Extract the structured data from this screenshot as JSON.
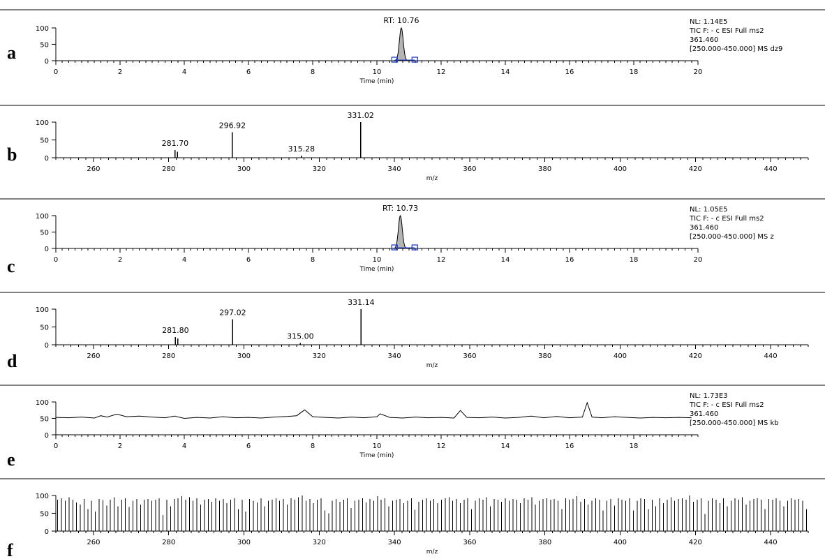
{
  "colors": {
    "axis": "#000000",
    "peak_fill": "#b4b4b4",
    "marker": "#1f3fd0",
    "line": "#000000"
  },
  "chart_data": [
    {
      "panel": "a",
      "type": "area",
      "xlabel": "Time (min)",
      "xlim": [
        0,
        20
      ],
      "ylim": [
        0,
        100
      ],
      "xticks": [
        0,
        2,
        4,
        6,
        8,
        10,
        12,
        14,
        16,
        18,
        20
      ],
      "yticks": [
        0,
        50,
        100
      ],
      "peak": {
        "rt": 10.76,
        "height": 100,
        "width": 0.12,
        "start": 10.55,
        "end": 11.18
      },
      "annotations": [
        "RT: 10.76"
      ],
      "info": [
        "NL: 1.14E5",
        "TIC F: - c ESI Full ms2",
        "361.460",
        "[250.000-450.000]  MS dz9"
      ]
    },
    {
      "panel": "b",
      "type": "bar",
      "xlabel": "m/z",
      "xlim": [
        250,
        450
      ],
      "ylim": [
        0,
        100
      ],
      "xticks": [
        260,
        280,
        300,
        320,
        340,
        360,
        380,
        400,
        420,
        440
      ],
      "yticks": [
        0,
        50,
        100
      ],
      "x": [
        281.7,
        282.3,
        296.92,
        315.28,
        331.02
      ],
      "y": [
        22,
        17,
        72,
        6,
        100
      ],
      "annotations": [
        {
          "x": 281.7,
          "label": "281.70"
        },
        {
          "x": 296.92,
          "label": "296.92"
        },
        {
          "x": 315.28,
          "label": "315.28"
        },
        {
          "x": 331.02,
          "label": "331.02"
        }
      ]
    },
    {
      "panel": "c",
      "type": "area",
      "xlabel": "Time (min)",
      "xlim": [
        0,
        20
      ],
      "ylim": [
        0,
        100
      ],
      "xticks": [
        0,
        2,
        4,
        6,
        8,
        10,
        12,
        14,
        16,
        18,
        20
      ],
      "yticks": [
        0,
        50,
        100
      ],
      "peak": {
        "rt": 10.73,
        "height": 100,
        "width": 0.12,
        "start": 10.55,
        "end": 11.18
      },
      "annotations": [
        "RT: 10.73"
      ],
      "info": [
        "NL: 1.05E5",
        "TIC F: - c ESI Full ms2",
        "361.460",
        "[250.000-450.000]  MS z"
      ]
    },
    {
      "panel": "d",
      "type": "bar",
      "xlabel": "m/z",
      "xlim": [
        250,
        450
      ],
      "ylim": [
        0,
        100
      ],
      "xticks": [
        260,
        280,
        300,
        320,
        340,
        360,
        380,
        400,
        420,
        440
      ],
      "yticks": [
        0,
        50,
        100
      ],
      "x": [
        281.8,
        282.4,
        297.02,
        315.0,
        331.14
      ],
      "y": [
        22,
        18,
        72,
        5,
        100
      ],
      "annotations": [
        {
          "x": 281.8,
          "label": "281.80"
        },
        {
          "x": 297.02,
          "label": "297.02"
        },
        {
          "x": 315.0,
          "label": "315.00"
        },
        {
          "x": 331.14,
          "label": "331.14"
        }
      ]
    },
    {
      "panel": "e",
      "type": "line",
      "xlabel": "Time (min)",
      "xlim": [
        0,
        20
      ],
      "ylim": [
        0,
        100
      ],
      "xticks": [
        0,
        2,
        4,
        6,
        8,
        10,
        12,
        14,
        16,
        18
      ],
      "yticks": [
        0,
        50,
        100
      ],
      "x": [
        0,
        0.4,
        0.8,
        1.2,
        1.4,
        1.6,
        1.9,
        2.2,
        2.6,
        3.0,
        3.4,
        3.7,
        4.0,
        4.4,
        4.8,
        5.2,
        5.6,
        6.0,
        6.4,
        6.8,
        7.2,
        7.5,
        7.75,
        8.0,
        8.4,
        8.8,
        9.2,
        9.6,
        10.0,
        10.1,
        10.4,
        10.8,
        11.2,
        11.6,
        12.0,
        12.4,
        12.6,
        12.8,
        13.2,
        13.6,
        14.0,
        14.4,
        14.8,
        15.2,
        15.6,
        16.0,
        16.4,
        16.55,
        16.7,
        17.0,
        17.4,
        17.8,
        18.2,
        18.6,
        19.0,
        19.4,
        19.8
      ],
      "y": [
        53,
        52,
        54,
        51,
        58,
        54,
        63,
        55,
        57,
        54,
        52,
        57,
        50,
        53,
        51,
        55,
        52,
        53,
        51,
        54,
        56,
        58,
        76,
        55,
        53,
        51,
        54,
        52,
        55,
        64,
        53,
        51,
        54,
        52,
        53,
        51,
        74,
        53,
        52,
        54,
        51,
        53,
        57,
        52,
        56,
        52,
        54,
        98,
        54,
        52,
        55,
        53,
        51,
        53,
        52,
        53,
        52
      ],
      "info": [
        "NL: 1.73E3",
        "TIC F: - c ESI Full ms2",
        "361.460",
        "[250.000-450.000]  MS kb"
      ]
    },
    {
      "panel": "f",
      "type": "bar",
      "xlabel": "m/z",
      "xlim": [
        250,
        450
      ],
      "ylim": [
        0,
        100
      ],
      "xticks": [
        260,
        280,
        300,
        320,
        340,
        360,
        380,
        400,
        420,
        440
      ],
      "yticks": [
        0,
        50,
        100
      ],
      "x": [
        250.5,
        251.5,
        252.5,
        253.5,
        254.5,
        255.5,
        256.5,
        257.5,
        258.5,
        259.5,
        260.5,
        261.5,
        262.5,
        263.5,
        264.5,
        265.5,
        266.5,
        267.5,
        268.5,
        269.5,
        270.5,
        271.5,
        272.5,
        273.5,
        274.5,
        275.5,
        276.5,
        277.5,
        278.5,
        279.5,
        280.5,
        281.5,
        282.5,
        283.5,
        284.5,
        285.5,
        286.5,
        287.5,
        288.5,
        289.5,
        290.5,
        291.5,
        292.5,
        293.5,
        294.5,
        295.5,
        296.5,
        297.5,
        298.5,
        299.5,
        300.5,
        301.5,
        302.5,
        303.5,
        304.5,
        305.5,
        306.5,
        307.5,
        308.5,
        309.5,
        310.5,
        311.5,
        312.5,
        313.5,
        314.5,
        315.5,
        316.5,
        317.5,
        318.5,
        319.5,
        320.5,
        321.5,
        322.5,
        323.5,
        324.5,
        325.5,
        326.5,
        327.5,
        328.5,
        329.5,
        330.5,
        331.5,
        332.5,
        333.5,
        334.5,
        335.5,
        336.5,
        337.5,
        338.5,
        339.5,
        340.5,
        341.5,
        342.5,
        343.5,
        344.5,
        345.5,
        346.5,
        347.5,
        348.5,
        349.5,
        350.5,
        351.5,
        352.5,
        353.5,
        354.5,
        355.5,
        356.5,
        357.5,
        358.5,
        359.5,
        360.5,
        361.5,
        362.5,
        363.5,
        364.5,
        365.5,
        366.5,
        367.5,
        368.5,
        369.5,
        370.5,
        371.5,
        372.5,
        373.5,
        374.5,
        375.5,
        376.5,
        377.5,
        378.5,
        379.5,
        380.5,
        381.5,
        382.5,
        383.5,
        384.5,
        385.5,
        386.5,
        387.5,
        388.5,
        389.5,
        390.5,
        391.5,
        392.5,
        393.5,
        394.5,
        395.5,
        396.5,
        397.5,
        398.5,
        399.5,
        400.5,
        401.5,
        402.5,
        403.5,
        404.5,
        405.5,
        406.5,
        407.5,
        408.5,
        409.5,
        410.5,
        411.5,
        412.5,
        413.5,
        414.5,
        415.5,
        416.5,
        417.5,
        418.5,
        419.5,
        420.5,
        421.5,
        422.5,
        423.5,
        424.5,
        425.5,
        426.5,
        427.5,
        428.5,
        429.5,
        430.5,
        431.5,
        432.5,
        433.5,
        434.5,
        435.5,
        436.5,
        437.5,
        438.5,
        439.5,
        440.5,
        441.5,
        442.5,
        443.5,
        444.5,
        445.5,
        446.5,
        447.5,
        448.5,
        449.5
      ],
      "y": [
        88,
        92,
        85,
        95,
        88,
        80,
        75,
        90,
        62,
        85,
        55,
        90,
        87,
        72,
        88,
        95,
        70,
        88,
        92,
        68,
        85,
        90,
        75,
        88,
        90,
        85,
        88,
        92,
        45,
        88,
        70,
        90,
        92,
        98,
        88,
        95,
        85,
        92,
        75,
        88,
        90,
        82,
        92,
        85,
        90,
        78,
        88,
        92,
        62,
        88,
        55,
        90,
        85,
        80,
        92,
        70,
        85,
        88,
        92,
        85,
        90,
        75,
        92,
        88,
        95,
        100,
        85,
        90,
        78,
        88,
        92,
        58,
        50,
        85,
        90,
        82,
        88,
        92,
        65,
        85,
        88,
        92,
        80,
        90,
        85,
        98,
        88,
        92,
        70,
        85,
        88,
        90,
        78,
        85,
        92,
        60,
        82,
        88,
        92,
        85,
        90,
        78,
        88,
        92,
        95,
        85,
        90,
        78,
        88,
        92,
        62,
        85,
        92,
        88,
        95,
        70,
        90,
        88,
        82,
        92,
        85,
        90,
        88,
        78,
        92,
        88,
        95,
        75,
        85,
        90,
        92,
        88,
        90,
        85,
        62,
        92,
        88,
        90,
        98,
        82,
        90,
        75,
        85,
        92,
        88,
        58,
        85,
        90,
        72,
        92,
        88,
        85,
        92,
        58,
        85,
        92,
        90,
        62,
        88,
        70,
        92,
        78,
        88,
        95,
        85,
        90,
        92,
        88,
        100,
        82,
        88,
        92,
        48,
        85,
        92,
        88,
        78,
        92,
        70,
        85,
        92,
        88,
        95,
        75,
        85,
        90,
        92,
        88,
        62,
        90,
        88,
        92,
        85,
        70,
        85,
        92,
        88,
        90,
        85,
        62
      ]
    }
  ]
}
